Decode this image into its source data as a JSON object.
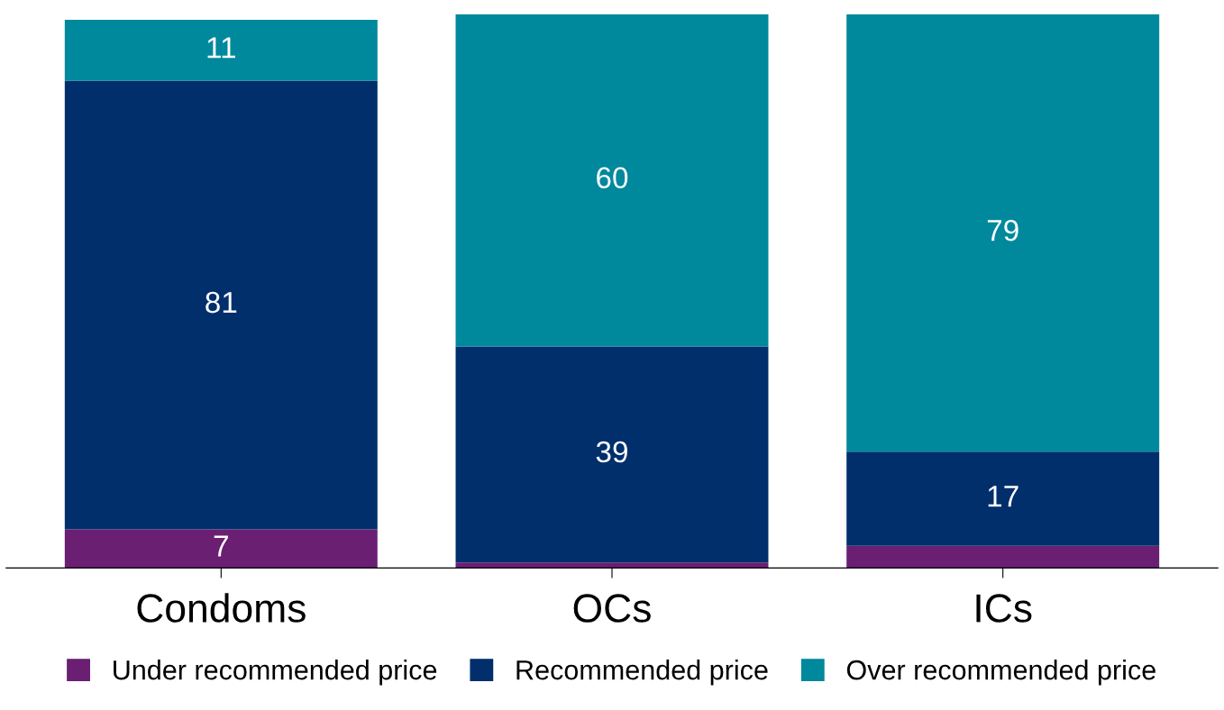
{
  "chart_data": {
    "type": "bar",
    "stacked": true,
    "categories": [
      "Condoms",
      "OCs",
      "ICs"
    ],
    "series": [
      {
        "name": "Under recommended price",
        "color": "#6a1f73",
        "values": [
          7,
          1,
          4
        ],
        "value_labels": [
          "7",
          null,
          null
        ]
      },
      {
        "name": "Recommended price",
        "color": "#002f6c",
        "values": [
          81,
          39,
          17
        ],
        "value_labels": [
          "81",
          "39",
          "17"
        ]
      },
      {
        "name": "Over recommended price",
        "color": "#00889c",
        "values": [
          11,
          60,
          79
        ],
        "value_labels": [
          "11",
          "60",
          "79"
        ]
      }
    ],
    "legend": "bottom",
    "grid": false,
    "tick_labels": "x"
  }
}
